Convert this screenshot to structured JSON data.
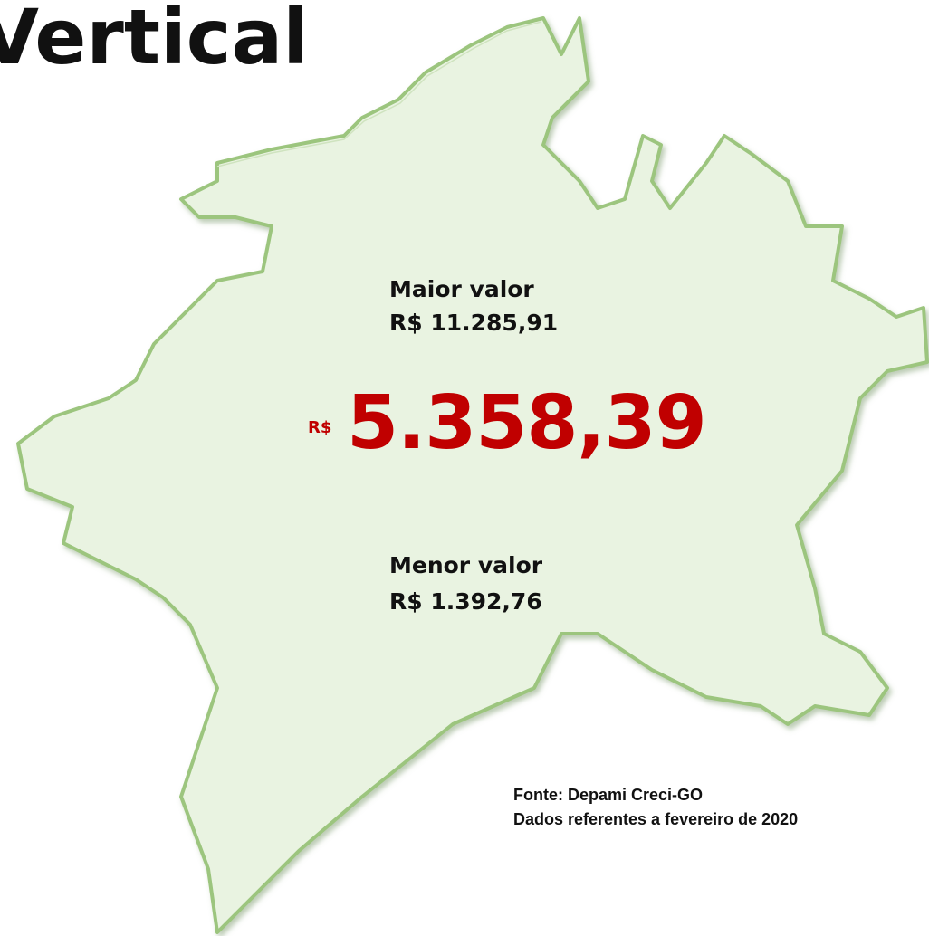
{
  "title": "Vertical",
  "highest": {
    "label": "Maior valor",
    "value": "R$ 11.285,91"
  },
  "average": {
    "currency": "R$",
    "value": "5.358,39"
  },
  "lowest": {
    "label": "Menor valor",
    "value": "R$ 1.392,76"
  },
  "source": {
    "line1": "Fonte: Depami Creci-GO",
    "line2": "Dados referentes a fevereiro de 2020"
  }
}
